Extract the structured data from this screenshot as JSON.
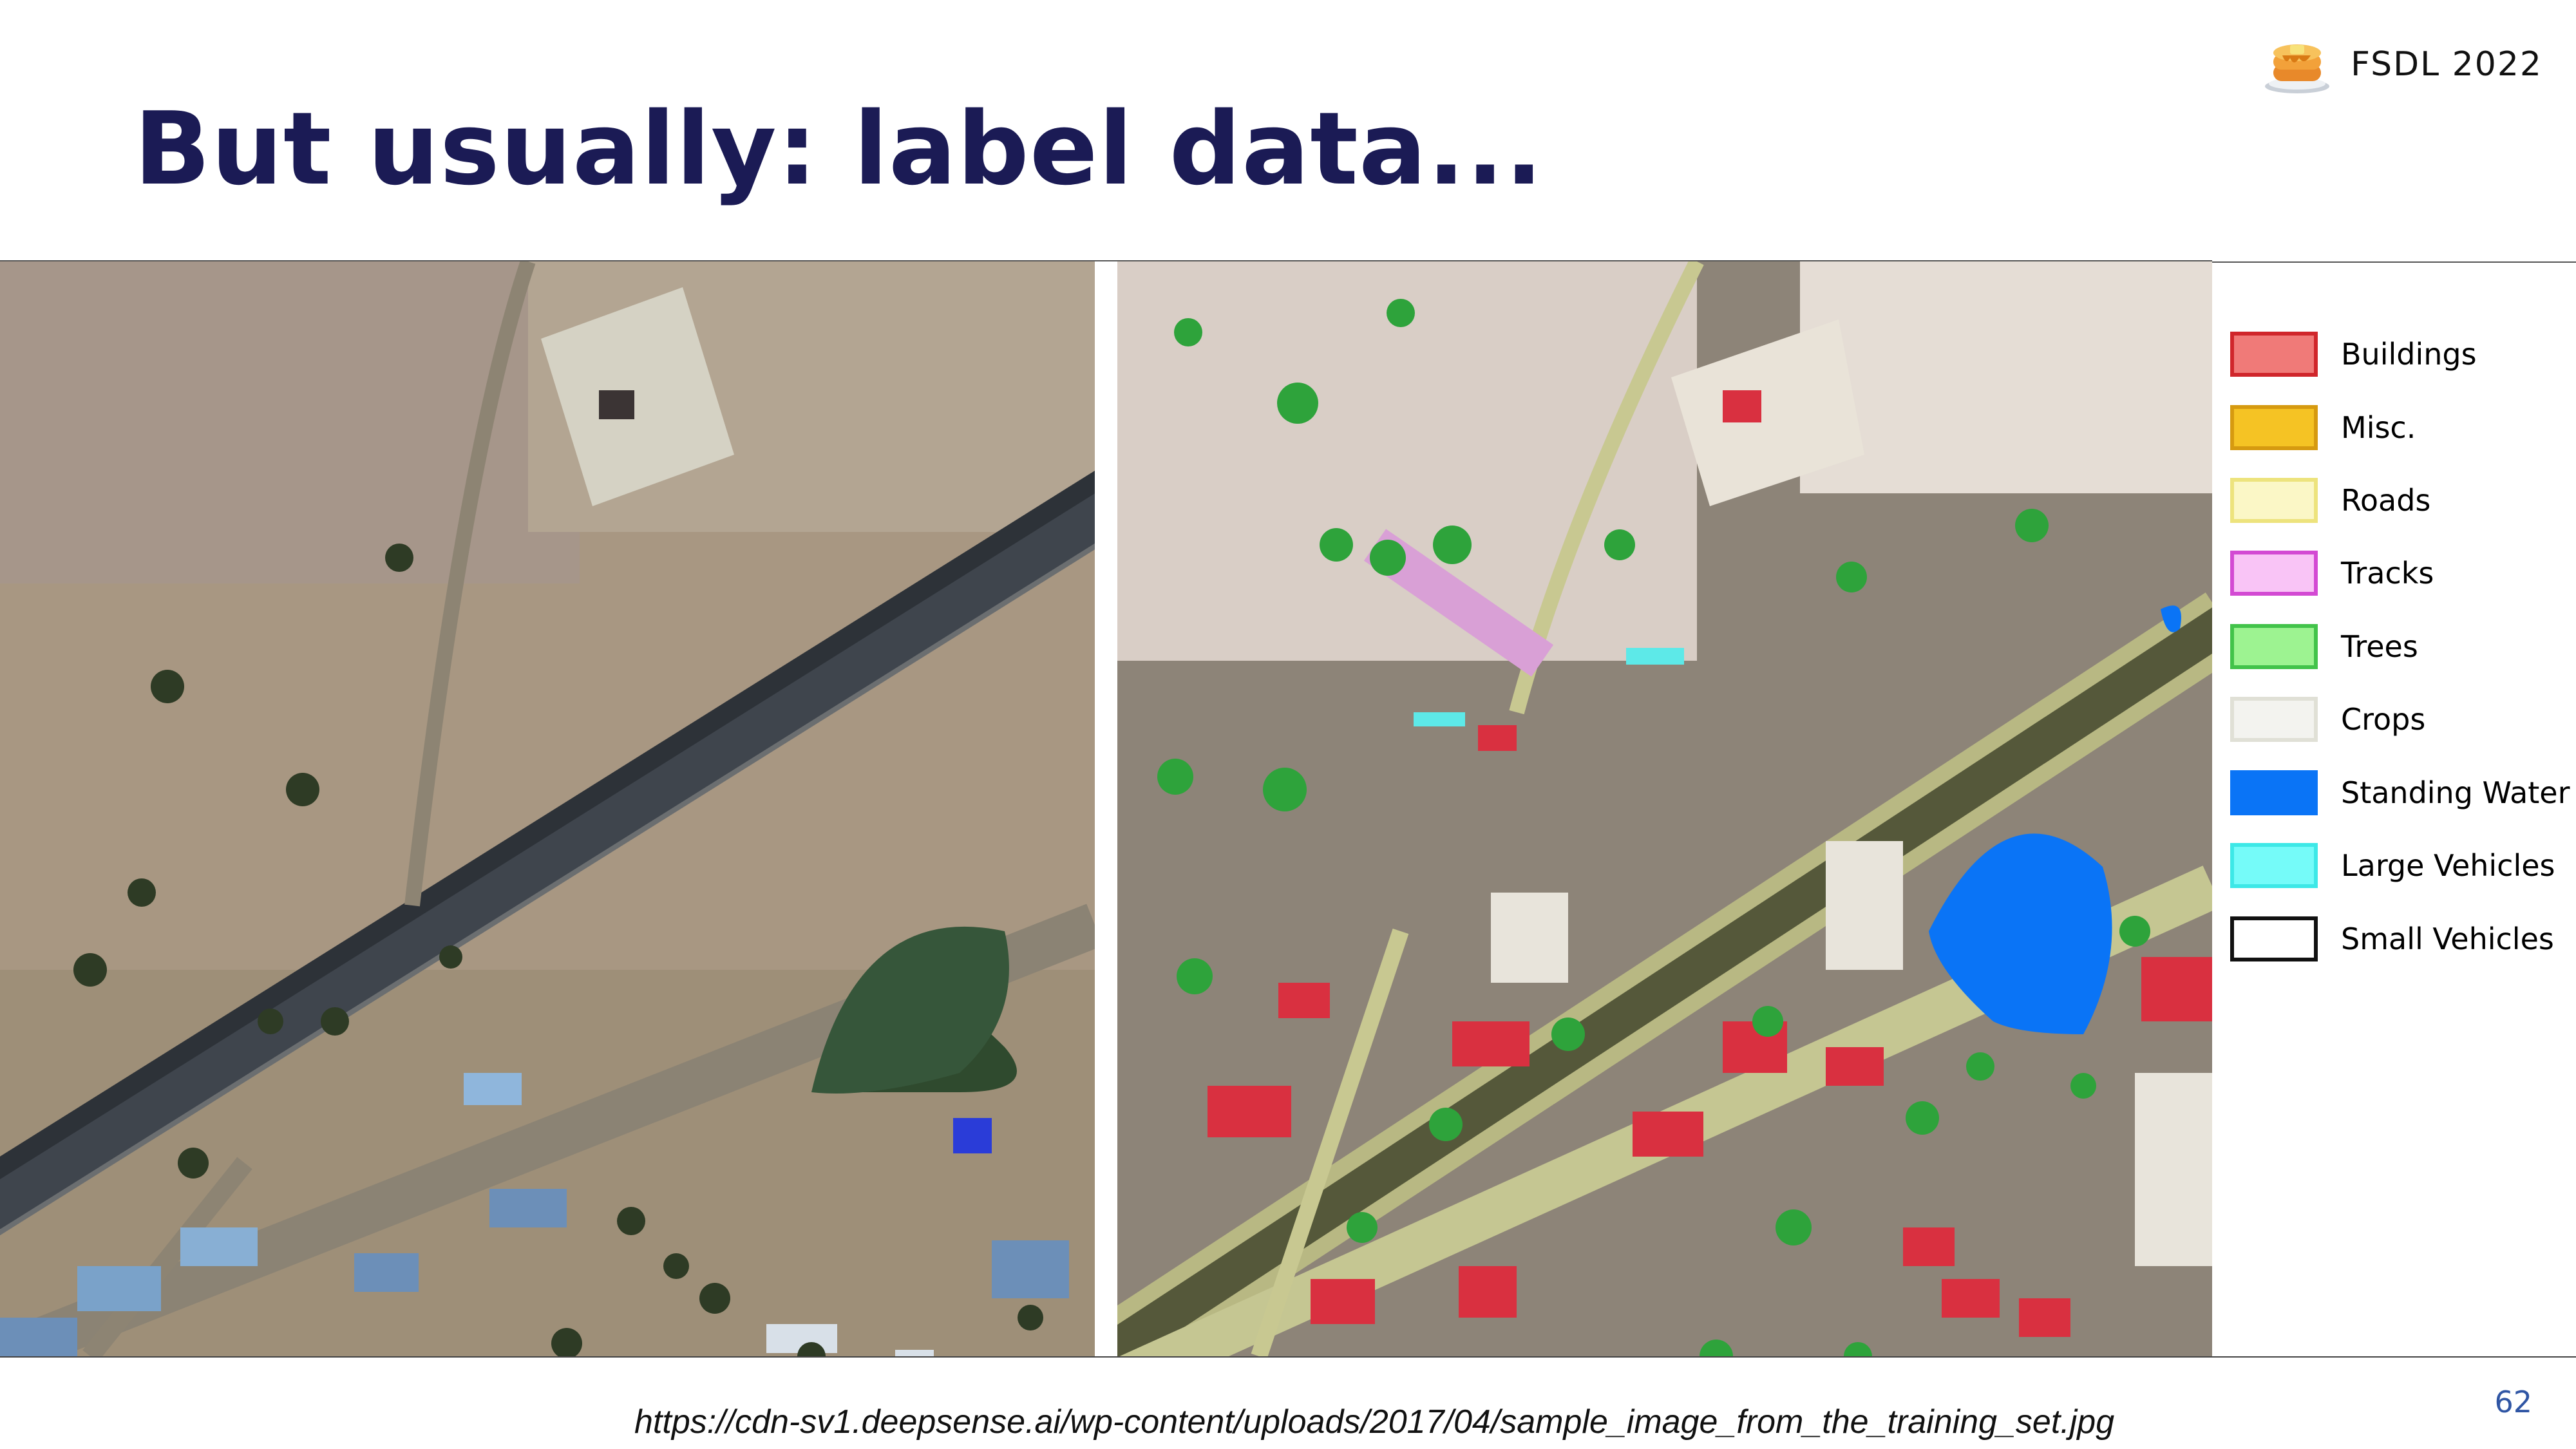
{
  "brand": {
    "label": "FSDL 2022",
    "icon": "pancake-stack-icon"
  },
  "slide": {
    "title": "But usually: label data...",
    "page_number": "62"
  },
  "source": {
    "url": "https://cdn-sv1.deepsense.ai/wp-content/uploads/2017/04/sample_image_from_the_training_set.jpg"
  },
  "legend": {
    "items": [
      {
        "label": "Buildings",
        "fill": "#f07a78",
        "border": "#d0262b"
      },
      {
        "label": "Misc.",
        "fill": "#f5c324",
        "border": "#d69a10"
      },
      {
        "label": "Roads",
        "fill": "#fbf7c6",
        "border": "#ede37d"
      },
      {
        "label": "Tracks",
        "fill": "#f9c4f6",
        "border": "#d34ad3"
      },
      {
        "label": "Trees",
        "fill": "#9df391",
        "border": "#42c34a"
      },
      {
        "label": "Crops",
        "fill": "#f3f3ef",
        "border": "#e0e0d6"
      },
      {
        "label": "Standing Water",
        "fill": "#0a74f6",
        "border": "#0a74f6"
      },
      {
        "label": "Large Vehicles",
        "fill": "#75fbf9",
        "border": "#3de8e7"
      },
      {
        "label": "Small Vehicles",
        "fill": "#ffffff",
        "border": "#111111"
      }
    ]
  }
}
